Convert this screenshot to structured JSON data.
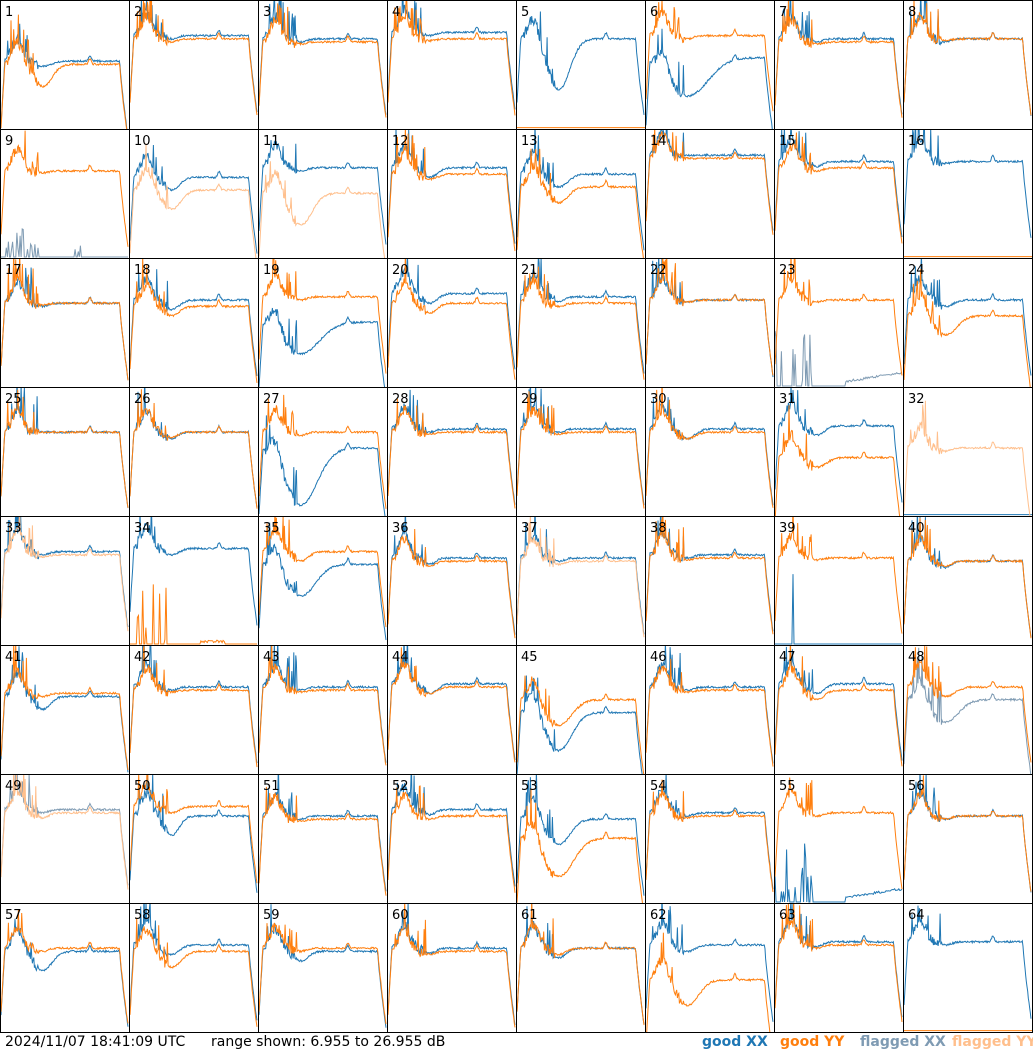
{
  "chart_data": {
    "type": "line",
    "layout": "8x8 small multiples",
    "x_axis": "channel (relative)",
    "ylim_db": [
      6.955,
      26.955
    ],
    "panel_labels": [
      "1",
      "2",
      "3",
      "4",
      "5",
      "6",
      "7",
      "8",
      "9",
      "10",
      "11",
      "12",
      "13",
      "14",
      "15",
      "16",
      "17",
      "18",
      "19",
      "20",
      "21",
      "22",
      "23",
      "24",
      "25",
      "26",
      "27",
      "28",
      "29",
      "30",
      "31",
      "32",
      "33",
      "34",
      "35",
      "36",
      "37",
      "38",
      "39",
      "40",
      "41",
      "42",
      "43",
      "44",
      "45",
      "46",
      "47",
      "48",
      "49",
      "50",
      "51",
      "52",
      "53",
      "54",
      "55",
      "56",
      "57",
      "58",
      "59",
      "60",
      "61",
      "62",
      "63",
      "64"
    ],
    "series_styles": [
      {
        "name": "good XX",
        "color": "#1f77b4"
      },
      {
        "name": "good YY",
        "color": "#ff7f0e"
      },
      {
        "name": "flagged XX",
        "color": "#7f9bb3"
      },
      {
        "name": "flagged YY",
        "color": "#ffbf8c"
      }
    ],
    "panels": [
      {
        "xx": {
          "s": "good",
          "pl": 17.5,
          "dip": 0.8,
          "dw": 0.1,
          "ms": 0
        },
        "yy": {
          "s": "good",
          "pl": 17.0,
          "dip": 3.5,
          "dw": 0.1,
          "ms": 0
        }
      },
      {
        "xx": {
          "s": "good",
          "pl": 21.5,
          "dip": 0.5,
          "dw": 0.06,
          "ms": 0
        },
        "yy": {
          "s": "good",
          "pl": 21.0,
          "dip": 0.5,
          "dw": 0.06,
          "ms": 0
        }
      },
      {
        "xx": {
          "s": "good",
          "pl": 21.0,
          "dip": 0.5,
          "dw": 0.06,
          "ms": 0
        },
        "yy": {
          "s": "good",
          "pl": 20.5,
          "dip": 0.3,
          "dw": 0.06,
          "ms": 0
        }
      },
      {
        "xx": {
          "s": "good",
          "pl": 22.0,
          "dip": 0.5,
          "dw": 0.06,
          "ms": 0
        },
        "yy": {
          "s": "good",
          "pl": 21.0,
          "dip": 0.3,
          "dw": 0.06,
          "ms": 0
        }
      },
      {
        "xx": {
          "s": "good",
          "pl": 21.0,
          "dip": 8.0,
          "dw": 0.12,
          "ms": 0
        },
        "yy": {
          "s": "good",
          "pl": 0,
          "dip": 0,
          "dw": 0,
          "ms": 1
        }
      },
      {
        "xx": {
          "s": "good",
          "pl": 18.0,
          "dip": 6.0,
          "dw": 0.22,
          "ms": -1.0
        },
        "yy": {
          "s": "good",
          "pl": 21.5,
          "dip": 0.5,
          "dw": 0.06,
          "ms": 0
        }
      },
      {
        "xx": {
          "s": "good",
          "pl": 21.0,
          "dip": 0.5,
          "dw": 0.06,
          "ms": 0
        },
        "yy": {
          "s": "good",
          "pl": 20.5,
          "dip": 0.3,
          "dw": 0.06,
          "ms": 0
        }
      },
      {
        "xx": {
          "s": "good",
          "pl": 21.0,
          "dip": 0.5,
          "dw": 0.06,
          "ms": 0
        },
        "yy": {
          "s": "good",
          "pl": 21.0,
          "dip": 0.3,
          "dw": 0.06,
          "ms": 0
        }
      },
      {
        "xx": {
          "s": "flagged",
          "pl": 0,
          "dip": 0,
          "dw": 0,
          "ms": 2
        },
        "yy": {
          "s": "good",
          "pl": 20.5,
          "dip": 0.3,
          "dw": 0.06,
          "ms": 0
        }
      },
      {
        "xx": {
          "s": "good",
          "pl": 19.5,
          "dip": 2.0,
          "dw": 0.08,
          "ms": 0
        },
        "yy": {
          "s": "flagged",
          "pl": 17.5,
          "dip": 3.0,
          "dw": 0.1,
          "ms": 0
        }
      },
      {
        "xx": {
          "s": "good",
          "pl": 21.0,
          "dip": 0.5,
          "dw": 0.06,
          "ms": 0
        },
        "yy": {
          "s": "flagged",
          "pl": 17.0,
          "dip": 5.0,
          "dw": 0.12,
          "ms": 0
        }
      },
      {
        "xx": {
          "s": "good",
          "pl": 21.0,
          "dip": 1.5,
          "dw": 0.08,
          "ms": 0
        },
        "yy": {
          "s": "good",
          "pl": 20.0,
          "dip": 0.8,
          "dw": 0.08,
          "ms": 0
        }
      },
      {
        "xx": {
          "s": "good",
          "pl": 20.0,
          "dip": 2.0,
          "dw": 0.1,
          "ms": 0
        },
        "yy": {
          "s": "good",
          "pl": 18.0,
          "dip": 2.5,
          "dw": 0.1,
          "ms": 0
        }
      },
      {
        "xx": {
          "s": "good",
          "pl": 23.0,
          "dip": 0,
          "dw": 0.06,
          "ms": 0
        },
        "yy": {
          "s": "good",
          "pl": 22.5,
          "dip": 0,
          "dw": 0.06,
          "ms": 0
        }
      },
      {
        "xx": {
          "s": "good",
          "pl": 22.0,
          "dip": 0.8,
          "dw": 0.06,
          "ms": 0
        },
        "yy": {
          "s": "good",
          "pl": 21.0,
          "dip": 0.5,
          "dw": 0.06,
          "ms": 0
        }
      },
      {
        "xx": {
          "s": "good",
          "pl": 22.0,
          "dip": 0.3,
          "dw": 0.06,
          "ms": 0
        },
        "yy": {
          "s": "good",
          "pl": 0,
          "dip": 0,
          "dw": 0,
          "ms": 1
        }
      },
      {
        "xx": {
          "s": "good",
          "pl": 20.0,
          "dip": 0.5,
          "dw": 0.06,
          "ms": 0
        },
        "yy": {
          "s": "good",
          "pl": 20.0,
          "dip": 0.3,
          "dw": 0.06,
          "ms": 0
        }
      },
      {
        "xx": {
          "s": "good",
          "pl": 20.5,
          "dip": 1.5,
          "dw": 0.08,
          "ms": 0
        },
        "yy": {
          "s": "good",
          "pl": 19.5,
          "dip": 1.5,
          "dw": 0.08,
          "ms": 0
        }
      },
      {
        "xx": {
          "s": "good",
          "pl": 17.0,
          "dip": 5.0,
          "dw": 0.2,
          "ms": 0
        },
        "yy": {
          "s": "good",
          "pl": 21.0,
          "dip": 0.5,
          "dw": 0.06,
          "ms": 0
        }
      },
      {
        "xx": {
          "s": "good",
          "pl": 21.5,
          "dip": 1.5,
          "dw": 0.08,
          "ms": 0
        },
        "yy": {
          "s": "good",
          "pl": 20.0,
          "dip": 1.5,
          "dw": 0.08,
          "ms": 0
        }
      },
      {
        "xx": {
          "s": "good",
          "pl": 21.0,
          "dip": 0.8,
          "dw": 0.06,
          "ms": 0
        },
        "yy": {
          "s": "good",
          "pl": 20.0,
          "dip": 0.5,
          "dw": 0.06,
          "ms": 0
        }
      },
      {
        "xx": {
          "s": "good",
          "pl": 20.5,
          "dip": 0.3,
          "dw": 0.06,
          "ms": 0
        },
        "yy": {
          "s": "good",
          "pl": 20.5,
          "dip": 0.3,
          "dw": 0.06,
          "ms": 0
        }
      },
      {
        "xx": {
          "s": "flagged",
          "pl": 0,
          "dip": 0,
          "dw": 0,
          "ms": 3
        },
        "yy": {
          "s": "good",
          "pl": 20.5,
          "dip": 0.3,
          "dw": 0.06,
          "ms": 0
        }
      },
      {
        "xx": {
          "s": "good",
          "pl": 20.5,
          "dip": 1.0,
          "dw": 0.08,
          "ms": 0
        },
        "yy": {
          "s": "good",
          "pl": 18.0,
          "dip": 3.0,
          "dw": 0.12,
          "ms": 0
        }
      },
      {
        "xx": {
          "s": "good",
          "pl": 20.0,
          "dip": 0,
          "dw": 0.06,
          "ms": 0
        },
        "yy": {
          "s": "good",
          "pl": 20.0,
          "dip": 0,
          "dw": 0.06,
          "ms": 0
        }
      },
      {
        "xx": {
          "s": "good",
          "pl": 20.0,
          "dip": 1.0,
          "dw": 0.06,
          "ms": 0
        },
        "yy": {
          "s": "good",
          "pl": 20.0,
          "dip": 0.8,
          "dw": 0.06,
          "ms": 0
        }
      },
      {
        "xx": {
          "s": "good",
          "pl": 17.5,
          "dip": 9.0,
          "dw": 0.18,
          "ms": 0
        },
        "yy": {
          "s": "good",
          "pl": 20.0,
          "dip": 0.5,
          "dw": 0.06,
          "ms": 0
        }
      },
      {
        "xx": {
          "s": "good",
          "pl": 20.5,
          "dip": 0.5,
          "dw": 0.06,
          "ms": 0
        },
        "yy": {
          "s": "good",
          "pl": 20.0,
          "dip": 0.3,
          "dw": 0.06,
          "ms": 0
        }
      },
      {
        "xx": {
          "s": "good",
          "pl": 20.5,
          "dip": 0.5,
          "dw": 0.06,
          "ms": 0
        },
        "yy": {
          "s": "good",
          "pl": 20.0,
          "dip": 0.3,
          "dw": 0.06,
          "ms": 0
        }
      },
      {
        "xx": {
          "s": "good",
          "pl": 20.5,
          "dip": 1.5,
          "dw": 0.08,
          "ms": 0
        },
        "yy": {
          "s": "good",
          "pl": 20.0,
          "dip": 1.0,
          "dw": 0.08,
          "ms": 0
        }
      },
      {
        "xx": {
          "s": "good",
          "pl": 21.0,
          "dip": 1.5,
          "dw": 0.08,
          "ms": 0
        },
        "yy": {
          "s": "good",
          "pl": 16.0,
          "dip": 1.5,
          "dw": 0.1,
          "ms": 0
        }
      },
      {
        "xx": {
          "s": "good",
          "pl": 0,
          "dip": 0,
          "dw": 0,
          "ms": 1
        },
        "yy": {
          "s": "flagged",
          "pl": 17.5,
          "dip": 0.5,
          "dw": 0.06,
          "ms": 0
        }
      },
      {
        "xx": {
          "s": "good",
          "pl": 21.5,
          "dip": 0.5,
          "dw": 0.06,
          "ms": 0
        },
        "yy": {
          "s": "flagged",
          "pl": 21.0,
          "dip": 0.3,
          "dw": 0.06,
          "ms": 0
        }
      },
      {
        "xx": {
          "s": "good",
          "pl": 22.0,
          "dip": 1.0,
          "dw": 0.08,
          "ms": 0
        },
        "yy": {
          "s": "good",
          "pl": 0,
          "dip": 0,
          "dw": 0,
          "ms": 4
        }
      },
      {
        "xx": {
          "s": "good",
          "pl": 19.5,
          "dip": 5.0,
          "dw": 0.16,
          "ms": 0
        },
        "yy": {
          "s": "good",
          "pl": 21.5,
          "dip": 1.5,
          "dw": 0.08,
          "ms": 0
        }
      },
      {
        "xx": {
          "s": "good",
          "pl": 20.5,
          "dip": 1.0,
          "dw": 0.06,
          "ms": 0
        },
        "yy": {
          "s": "good",
          "pl": 20.0,
          "dip": 0.8,
          "dw": 0.06,
          "ms": 0
        }
      },
      {
        "xx": {
          "s": "good",
          "pl": 20.5,
          "dip": 0.5,
          "dw": 0.06,
          "ms": 0
        },
        "yy": {
          "s": "flagged",
          "pl": 20.0,
          "dip": 0.5,
          "dw": 0.06,
          "ms": 0
        }
      },
      {
        "xx": {
          "s": "good",
          "pl": 21.0,
          "dip": 0.5,
          "dw": 0.06,
          "ms": 0
        },
        "yy": {
          "s": "good",
          "pl": 20.5,
          "dip": 0.3,
          "dw": 0.06,
          "ms": 0
        }
      },
      {
        "xx": {
          "s": "good",
          "pl": 0,
          "dip": 0,
          "dw": 0,
          "ms": 5
        },
        "yy": {
          "s": "good",
          "pl": 20.5,
          "dip": 0.3,
          "dw": 0.06,
          "ms": 0
        }
      },
      {
        "xx": {
          "s": "good",
          "pl": 20.0,
          "dip": 1.0,
          "dw": 0.06,
          "ms": 0
        },
        "yy": {
          "s": "good",
          "pl": 20.0,
          "dip": 0.8,
          "dw": 0.06,
          "ms": 0
        }
      },
      {
        "xx": {
          "s": "good",
          "pl": 19.0,
          "dip": 2.0,
          "dw": 0.08,
          "ms": 0
        },
        "yy": {
          "s": "good",
          "pl": 19.5,
          "dip": 0.5,
          "dw": 0.06,
          "ms": 0
        }
      },
      {
        "xx": {
          "s": "good",
          "pl": 20.5,
          "dip": 0.5,
          "dw": 0.06,
          "ms": 0
        },
        "yy": {
          "s": "good",
          "pl": 20.0,
          "dip": 0.3,
          "dw": 0.06,
          "ms": 0
        }
      },
      {
        "xx": {
          "s": "good",
          "pl": 20.5,
          "dip": 0.5,
          "dw": 0.06,
          "ms": 0
        },
        "yy": {
          "s": "good",
          "pl": 20.0,
          "dip": 0.3,
          "dw": 0.06,
          "ms": 0
        }
      },
      {
        "xx": {
          "s": "good",
          "pl": 21.0,
          "dip": 1.5,
          "dw": 0.08,
          "ms": 0
        },
        "yy": {
          "s": "good",
          "pl": 20.5,
          "dip": 1.0,
          "dw": 0.08,
          "ms": 0
        }
      },
      {
        "xx": {
          "s": "good",
          "pl": 16.5,
          "dip": 6.0,
          "dw": 0.14,
          "ms": 0
        },
        "yy": {
          "s": "good",
          "pl": 18.5,
          "dip": 4.0,
          "dw": 0.14,
          "ms": 0
        }
      },
      {
        "xx": {
          "s": "good",
          "pl": 20.5,
          "dip": 0.5,
          "dw": 0.06,
          "ms": 0
        },
        "yy": {
          "s": "good",
          "pl": 20.0,
          "dip": 0.3,
          "dw": 0.06,
          "ms": 0
        }
      },
      {
        "xx": {
          "s": "good",
          "pl": 21.0,
          "dip": 1.5,
          "dw": 0.08,
          "ms": 0
        },
        "yy": {
          "s": "good",
          "pl": 20.0,
          "dip": 1.5,
          "dw": 0.08,
          "ms": 0
        }
      },
      {
        "xx": {
          "s": "flagged",
          "pl": 18.5,
          "dip": 3.5,
          "dw": 0.14,
          "ms": 0
        },
        "yy": {
          "s": "good",
          "pl": 20.5,
          "dip": 1.5,
          "dw": 0.1,
          "ms": 0
        }
      },
      {
        "xx": {
          "s": "flagged",
          "pl": 21.5,
          "dip": 0.5,
          "dw": 0.06,
          "ms": 0
        },
        "yy": {
          "s": "flagged",
          "pl": 21.0,
          "dip": 0.8,
          "dw": 0.06,
          "ms": 0
        }
      },
      {
        "xx": {
          "s": "good",
          "pl": 20.5,
          "dip": 3.0,
          "dw": 0.08,
          "ms": 0
        },
        "yy": {
          "s": "good",
          "pl": 22.0,
          "dip": 1.0,
          "dw": 0.08,
          "ms": 0
        }
      },
      {
        "xx": {
          "s": "good",
          "pl": 20.5,
          "dip": 0.5,
          "dw": 0.06,
          "ms": 0
        },
        "yy": {
          "s": "good",
          "pl": 20.0,
          "dip": 0.3,
          "dw": 0.06,
          "ms": 0
        }
      },
      {
        "xx": {
          "s": "good",
          "pl": 21.5,
          "dip": 0.8,
          "dw": 0.06,
          "ms": 0
        },
        "yy": {
          "s": "good",
          "pl": 20.5,
          "dip": 0.5,
          "dw": 0.06,
          "ms": 0
        }
      },
      {
        "xx": {
          "s": "good",
          "pl": 20.0,
          "dip": 4.0,
          "dw": 0.12,
          "ms": 0
        },
        "yy": {
          "s": "good",
          "pl": 17.0,
          "dip": 6.0,
          "dw": 0.16,
          "ms": 0
        }
      },
      {
        "xx": {
          "s": "good",
          "pl": 21.0,
          "dip": 0.5,
          "dw": 0.06,
          "ms": 0
        },
        "yy": {
          "s": "good",
          "pl": 20.5,
          "dip": 0.3,
          "dw": 0.06,
          "ms": 0
        }
      },
      {
        "xx": {
          "s": "good",
          "pl": 0,
          "dip": 0,
          "dw": 0,
          "ms": 3
        },
        "yy": {
          "s": "good",
          "pl": 21.0,
          "dip": 0.5,
          "dw": 0.06,
          "ms": 0
        }
      },
      {
        "xx": {
          "s": "good",
          "pl": 20.5,
          "dip": 0.5,
          "dw": 0.06,
          "ms": 0
        },
        "yy": {
          "s": "good",
          "pl": 20.5,
          "dip": 0.5,
          "dw": 0.06,
          "ms": 0
        }
      },
      {
        "xx": {
          "s": "good",
          "pl": 19.5,
          "dip": 3.0,
          "dw": 0.1,
          "ms": 0
        },
        "yy": {
          "s": "good",
          "pl": 20.0,
          "dip": 0.5,
          "dw": 0.06,
          "ms": 0
        }
      },
      {
        "xx": {
          "s": "good",
          "pl": 20.5,
          "dip": 1.5,
          "dw": 0.08,
          "ms": 0
        },
        "yy": {
          "s": "good",
          "pl": 19.5,
          "dip": 2.5,
          "dw": 0.1,
          "ms": 0
        }
      },
      {
        "xx": {
          "s": "good",
          "pl": 19.5,
          "dip": 1.5,
          "dw": 0.08,
          "ms": 0
        },
        "yy": {
          "s": "good",
          "pl": 20.0,
          "dip": 0.5,
          "dw": 0.06,
          "ms": 0
        }
      },
      {
        "xx": {
          "s": "good",
          "pl": 20.0,
          "dip": 0.8,
          "dw": 0.06,
          "ms": 0
        },
        "yy": {
          "s": "good",
          "pl": 19.5,
          "dip": 0.5,
          "dw": 0.06,
          "ms": 0
        }
      },
      {
        "xx": {
          "s": "good",
          "pl": 20.0,
          "dip": 1.5,
          "dw": 0.08,
          "ms": 0
        },
        "yy": {
          "s": "good",
          "pl": 20.0,
          "dip": 1.0,
          "dw": 0.08,
          "ms": 0
        }
      },
      {
        "xx": {
          "s": "good",
          "pl": 20.5,
          "dip": 1.0,
          "dw": 0.08,
          "ms": 0
        },
        "yy": {
          "s": "good",
          "pl": 15.0,
          "dip": 4.0,
          "dw": 0.12,
          "ms": 0
        }
      },
      {
        "xx": {
          "s": "good",
          "pl": 21.0,
          "dip": 0.8,
          "dw": 0.06,
          "ms": 0
        },
        "yy": {
          "s": "good",
          "pl": 20.5,
          "dip": 0.5,
          "dw": 0.06,
          "ms": 0
        }
      },
      {
        "xx": {
          "s": "good",
          "pl": 21.0,
          "dip": 0.5,
          "dw": 0.06,
          "ms": 0
        },
        "yy": {
          "s": "good",
          "pl": 0,
          "dip": 0,
          "dw": 0,
          "ms": 1
        }
      }
    ]
  },
  "footer": {
    "timestamp": "2024/11/07 18:41:09 UTC",
    "range_text": "range shown: 6.955 to 26.955 dB",
    "legend": [
      "good XX",
      "good YY",
      "flagged XX",
      "flagged YY"
    ]
  }
}
